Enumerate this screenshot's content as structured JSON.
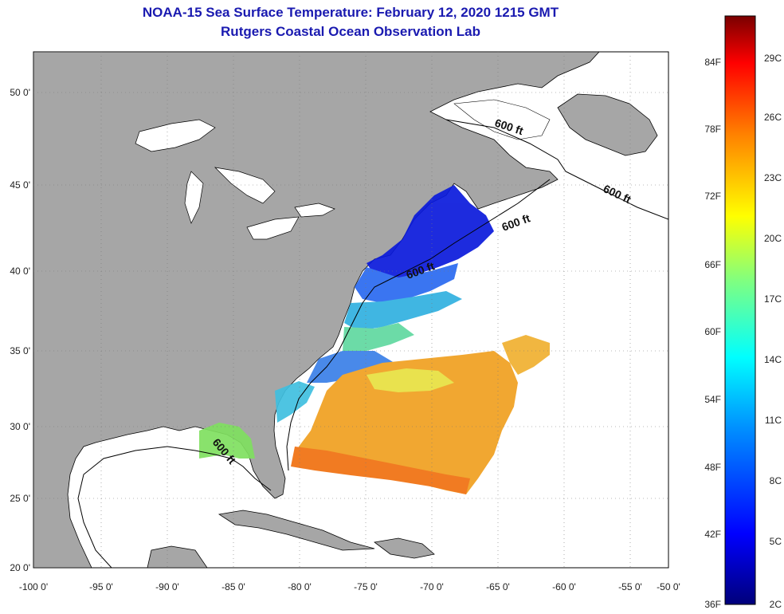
{
  "title_line1": "NOAA-15 Sea Surface Temperature:  February 12, 2020 1215 GMT",
  "title_line2": "Rutgers Coastal Ocean Observation Lab",
  "colors": {
    "land": "#a6a6a6",
    "ocean": "#ffffff",
    "title": "#1a1ab0"
  },
  "lon_ticks": [
    "-100 0'",
    "-95 0'",
    "-90 0'",
    "-85 0'",
    "-80 0'",
    "-75 0'",
    "-70 0'",
    "-65 0'",
    "-60 0'",
    "-55 0'",
    "-50 0'"
  ],
  "lat_ticks": [
    "50 0'",
    "45 0'",
    "40 0'",
    "35 0'",
    "30 0'",
    "25 0'",
    "20 0'"
  ],
  "contour_labels": [
    "600 ft",
    "600 ft",
    "600 ft",
    "600 ft",
    "600 ft"
  ],
  "colorbar": {
    "fahrenheit": [
      "84F",
      "78F",
      "72F",
      "66F",
      "60F",
      "54F",
      "48F",
      "42F",
      "36F"
    ],
    "celsius": [
      "29C",
      "26C",
      "23C",
      "20C",
      "17C",
      "14C",
      "11C",
      "8C",
      "5C",
      "2C"
    ]
  }
}
